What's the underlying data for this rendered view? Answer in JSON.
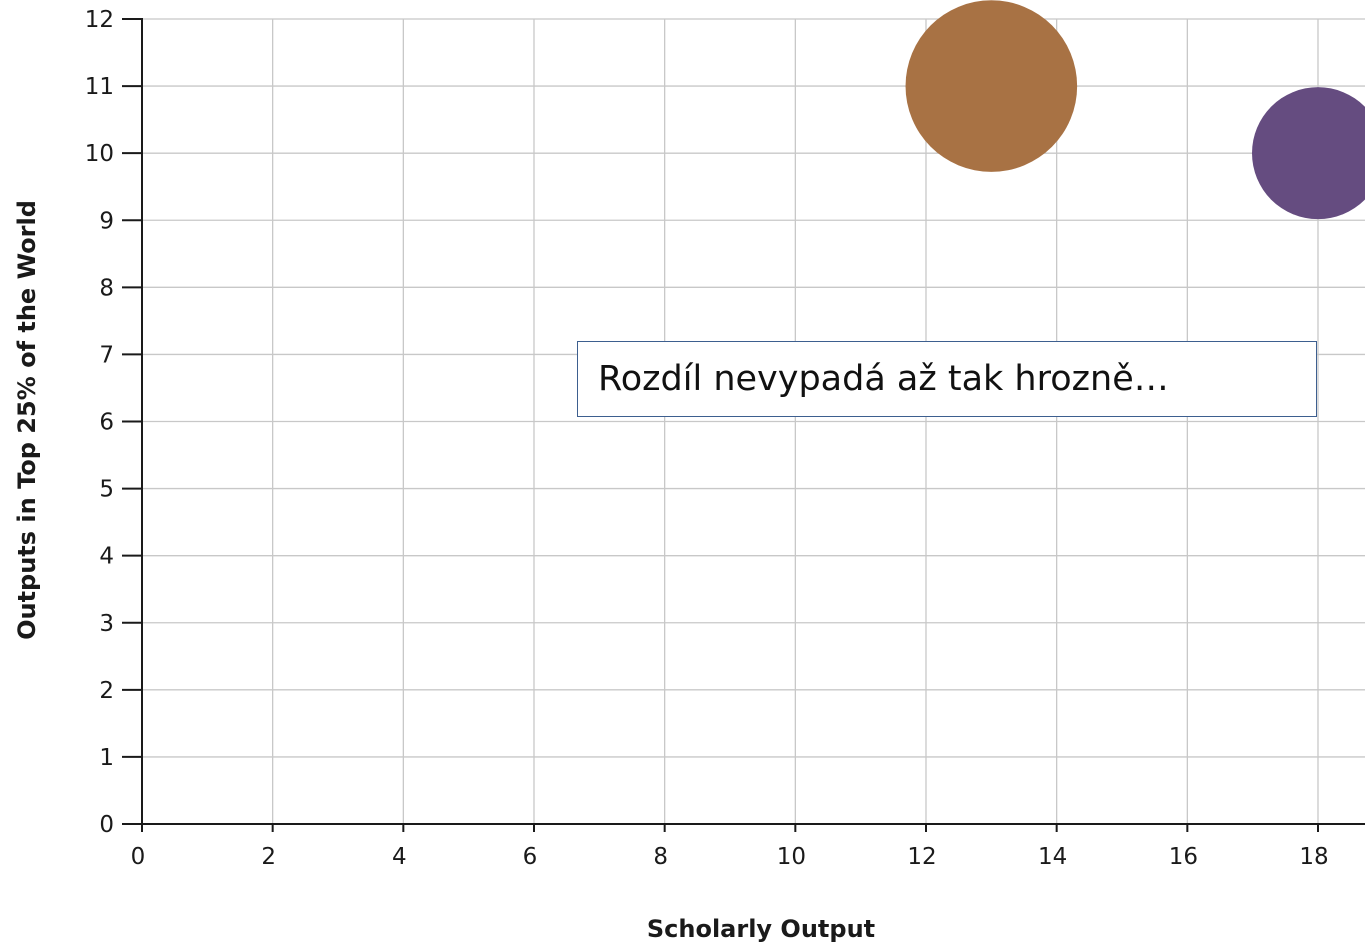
{
  "chart_data": {
    "type": "scatter",
    "title": "",
    "xlabel": "Scholarly Output",
    "ylabel": "Outputs in Top 25% of the World",
    "xlim": [
      0,
      18
    ],
    "ylim": [
      0,
      12
    ],
    "x_ticks": [
      0,
      2,
      4,
      6,
      8,
      10,
      12,
      14,
      16,
      18
    ],
    "y_ticks": [
      0,
      1,
      2,
      3,
      4,
      5,
      6,
      7,
      8,
      9,
      10,
      11,
      12
    ],
    "grid": true,
    "points": [
      {
        "x": 13,
        "y": 11,
        "size": 1.3,
        "color": "#a87244"
      },
      {
        "x": 18,
        "y": 10,
        "size": 1.0,
        "color": "#654c80"
      }
    ]
  },
  "annotation": {
    "text": "Rozdíl nevypadá až tak hrozně…",
    "border_color": "#3d5f8f"
  }
}
